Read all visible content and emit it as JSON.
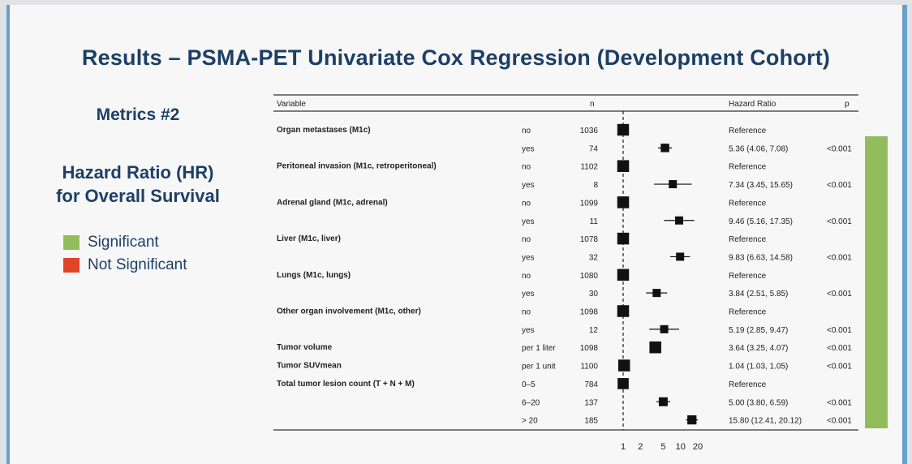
{
  "slide": {
    "title": "Results – PSMA-PET Univariate Cox Regression (Development Cohort)",
    "metrics_label": "Metrics #2",
    "hr_title_line1": "Hazard Ratio (HR)",
    "hr_title_line2": "for Overall Survival",
    "legend": [
      {
        "label": "Significant",
        "color": "#93bd5c"
      },
      {
        "label": "Not Significant",
        "color": "#e0452a"
      }
    ],
    "significance_color": "#93bd5c"
  },
  "chart_data": {
    "type": "forest",
    "xscale": "log",
    "xlim": [
      1,
      20
    ],
    "xticks": [
      "1",
      "2",
      "5",
      "10",
      "20"
    ],
    "headers": {
      "variable": "Variable",
      "n": "n",
      "hr": "Hazard Ratio",
      "p": "p"
    },
    "rows": [
      {
        "variable": "Organ metastases (M1c)",
        "level": "no",
        "n": "1036",
        "hr": 1,
        "lo": null,
        "hi": null,
        "hr_text": "Reference",
        "p": ""
      },
      {
        "variable": "",
        "level": "yes",
        "n": "74",
        "hr": 5.36,
        "lo": 4.06,
        "hi": 7.08,
        "hr_text": "5.36 (4.06, 7.08)",
        "p": "<0.001"
      },
      {
        "variable": "Peritoneal invasion (M1c, retroperitoneal)",
        "level": "no",
        "n": "1102",
        "hr": 1,
        "lo": null,
        "hi": null,
        "hr_text": "Reference",
        "p": ""
      },
      {
        "variable": "",
        "level": "yes",
        "n": "8",
        "hr": 7.34,
        "lo": 3.45,
        "hi": 15.65,
        "hr_text": "7.34 (3.45, 15.65)",
        "p": "<0.001"
      },
      {
        "variable": "Adrenal gland (M1c, adrenal)",
        "level": "no",
        "n": "1099",
        "hr": 1,
        "lo": null,
        "hi": null,
        "hr_text": "Reference",
        "p": ""
      },
      {
        "variable": "",
        "level": "yes",
        "n": "11",
        "hr": 9.46,
        "lo": 5.16,
        "hi": 17.35,
        "hr_text": "9.46 (5.16, 17.35)",
        "p": "<0.001"
      },
      {
        "variable": "Liver (M1c, liver)",
        "level": "no",
        "n": "1078",
        "hr": 1,
        "lo": null,
        "hi": null,
        "hr_text": "Reference",
        "p": ""
      },
      {
        "variable": "",
        "level": "yes",
        "n": "32",
        "hr": 9.83,
        "lo": 6.63,
        "hi": 14.58,
        "hr_text": "9.83 (6.63, 14.58)",
        "p": "<0.001"
      },
      {
        "variable": "Lungs (M1c, lungs)",
        "level": "no",
        "n": "1080",
        "hr": 1,
        "lo": null,
        "hi": null,
        "hr_text": "Reference",
        "p": ""
      },
      {
        "variable": "",
        "level": "yes",
        "n": "30",
        "hr": 3.84,
        "lo": 2.51,
        "hi": 5.85,
        "hr_text": "3.84 (2.51, 5.85)",
        "p": "<0.001"
      },
      {
        "variable": "Other organ involvement (M1c, other)",
        "level": "no",
        "n": "1098",
        "hr": 1,
        "lo": null,
        "hi": null,
        "hr_text": "Reference",
        "p": ""
      },
      {
        "variable": "",
        "level": "yes",
        "n": "12",
        "hr": 5.19,
        "lo": 2.85,
        "hi": 9.47,
        "hr_text": "5.19 (2.85, 9.47)",
        "p": "<0.001"
      },
      {
        "variable": "Tumor volume",
        "level": "per 1 liter",
        "n": "1098",
        "hr": 3.64,
        "lo": 3.25,
        "hi": 4.07,
        "hr_text": "3.64 (3.25, 4.07)",
        "p": "<0.001"
      },
      {
        "variable": "Tumor SUVmean",
        "level": "per 1 unit",
        "n": "1100",
        "hr": 1.04,
        "lo": 1.03,
        "hi": 1.05,
        "hr_text": "1.04 (1.03, 1.05)",
        "p": "<0.001"
      },
      {
        "variable": "Total tumor lesion count (T + N + M)",
        "level": "0–5",
        "n": "784",
        "hr": 1,
        "lo": null,
        "hi": null,
        "hr_text": "Reference",
        "p": ""
      },
      {
        "variable": "",
        "level": "6–20",
        "n": "137",
        "hr": 5.0,
        "lo": 3.8,
        "hi": 6.59,
        "hr_text": "5.00 (3.80, 6.59)",
        "p": "<0.001"
      },
      {
        "variable": "",
        "level": "> 20",
        "n": "185",
        "hr": 15.8,
        "lo": 12.41,
        "hi": 20.12,
        "hr_text": "15.80 (12.41, 20.12)",
        "p": "<0.001"
      }
    ]
  }
}
